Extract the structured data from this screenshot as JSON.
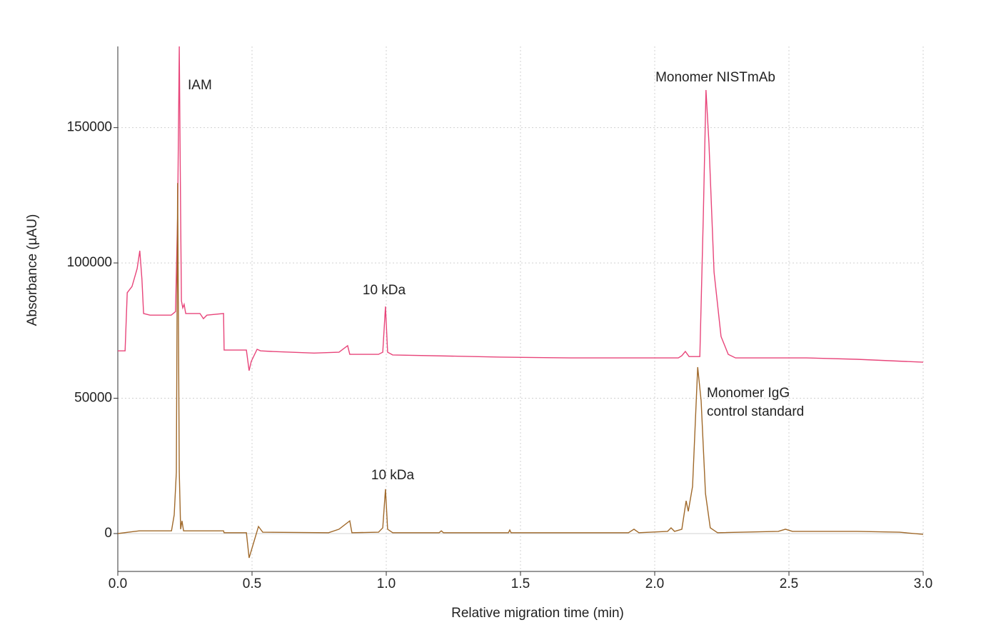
{
  "chart_data": {
    "type": "line",
    "xlabel": "Relative migration time (min)",
    "ylabel": "Absorbance (µAU)",
    "xlim": [
      0,
      3
    ],
    "ylim": [
      -14000,
      180000
    ],
    "xticks": [
      {
        "value": 0,
        "label": "0.0"
      },
      0.5,
      {
        "value": 1,
        "label": "1.0"
      },
      1.5,
      {
        "value": 2,
        "label": "2.0"
      },
      2.5,
      {
        "value": 3,
        "label": "3.0"
      }
    ],
    "yticks": [
      0,
      50000,
      100000,
      150000
    ],
    "grid": true,
    "annotations": [
      "IAM",
      "10 kDa",
      "10 kDa",
      "Monomer NISTmAb",
      "Monomer IgG",
      "control standard"
    ],
    "series": [
      {
        "color": "#e8457a",
        "x": [
          0,
          0.027,
          0.035,
          0.053,
          0.072,
          0.082,
          0.09,
          0.096,
          0.12,
          0.199,
          0.215,
          0.223,
          0.229,
          0.234,
          0.237,
          0.242,
          0.247,
          0.253,
          0.306,
          0.319,
          0.332,
          0.394,
          0.396,
          0.479,
          0.489,
          0.497,
          0.519,
          0.532,
          0.572,
          0.731,
          0.824,
          0.856,
          0.864,
          0.971,
          0.987,
          0.997,
          1.005,
          1.024,
          1.423,
          1.689,
          2.088,
          2.101,
          2.114,
          2.128,
          2.168,
          2.181,
          2.191,
          2.202,
          2.221,
          2.247,
          2.274,
          2.301,
          2.566,
          2.753,
          3.0
        ],
        "values": [
          67500,
          67500,
          89000,
          91300,
          97900,
          104500,
          93900,
          81300,
          80700,
          80700,
          82000,
          117700,
          180000,
          117700,
          86000,
          83400,
          84700,
          81300,
          81300,
          79400,
          80700,
          81300,
          67800,
          67800,
          60200,
          63600,
          68100,
          67500,
          67300,
          66700,
          67000,
          69400,
          66200,
          66200,
          67000,
          83900,
          67000,
          66000,
          65200,
          64900,
          64900,
          65700,
          67300,
          65400,
          65400,
          117700,
          163900,
          144100,
          96600,
          72800,
          66200,
          64900,
          64900,
          64400,
          63300
        ]
      },
      {
        "color": "#a0692a",
        "x": [
          0,
          0.04,
          0.08,
          0.2,
          0.21,
          0.218,
          0.223,
          0.229,
          0.234,
          0.239,
          0.245,
          0.394,
          0.396,
          0.479,
          0.489,
          0.505,
          0.524,
          0.54,
          0.785,
          0.824,
          0.864,
          0.872,
          0.971,
          0.987,
          0.997,
          1.005,
          1.024,
          1.197,
          1.205,
          1.213,
          1.455,
          1.46,
          1.465,
          1.902,
          1.923,
          1.941,
          2.048,
          2.061,
          2.074,
          2.101,
          2.117,
          2.125,
          2.141,
          2.16,
          2.173,
          2.189,
          2.207,
          2.234,
          2.46,
          2.487,
          2.513,
          2.753,
          2.912,
          3.0
        ],
        "values": [
          0,
          500,
          1000,
          1000,
          6900,
          22700,
          129500,
          22700,
          1600,
          4700,
          1000,
          1000,
          300,
          300,
          -9000,
          -3700,
          2600,
          500,
          300,
          1600,
          4700,
          300,
          500,
          2100,
          16400,
          1600,
          300,
          300,
          1000,
          300,
          300,
          1300,
          300,
          300,
          1600,
          300,
          800,
          2100,
          800,
          1600,
          12100,
          8200,
          17400,
          61500,
          49100,
          14800,
          2100,
          300,
          800,
          1600,
          800,
          800,
          500,
          -300
        ]
      }
    ]
  }
}
